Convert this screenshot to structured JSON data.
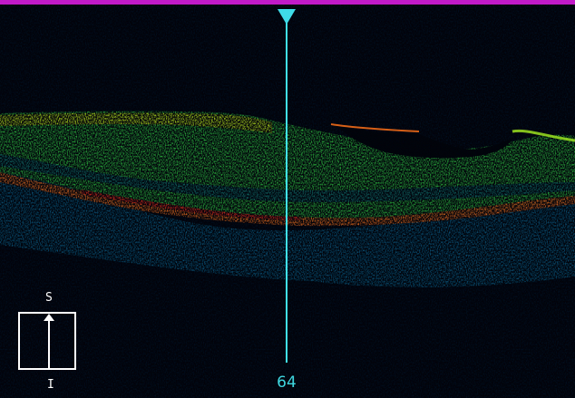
{
  "scan": {
    "type": "OCT B-scan",
    "colormap": [
      "#030611",
      "#0b2d4c",
      "#0f6a7a",
      "#17b35a",
      "#b2e015",
      "#f2d410",
      "#ef6a1c",
      "#e22b1a"
    ]
  },
  "cursor": {
    "position_label": "64",
    "color": "#3fdce8"
  },
  "orientation": {
    "superior_label": "S",
    "inferior_label": "I"
  },
  "border_color": "#c21ac8"
}
